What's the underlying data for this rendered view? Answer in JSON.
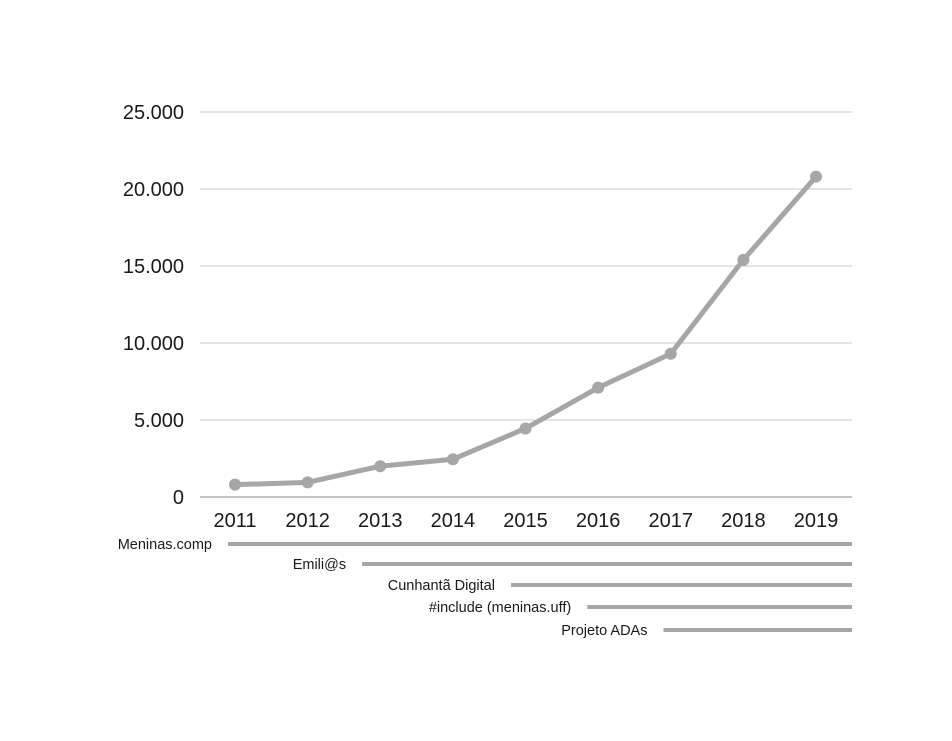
{
  "colors": {
    "series": "#a6a6a6",
    "grid": "#c8c8c8",
    "text": "#1a1a1a",
    "background": "#ffffff"
  },
  "chart_data": {
    "type": "line",
    "title": "",
    "xlabel": "",
    "ylabel": "",
    "categories": [
      "2011",
      "2012",
      "2013",
      "2014",
      "2015",
      "2016",
      "2017",
      "2018",
      "2019"
    ],
    "series": [
      {
        "values": [
          800,
          950,
          2000,
          2450,
          4450,
          7100,
          9300,
          15400,
          20800
        ]
      }
    ],
    "ylim": [
      0,
      25000
    ],
    "yticks": [
      0,
      5000,
      10000,
      15000,
      20000,
      25000
    ],
    "ytick_labels": [
      "0",
      "5.000",
      "10.000",
      "15.000",
      "20.000",
      "25.000"
    ],
    "grid": true,
    "markers": true,
    "legend": "none",
    "timeline": [
      {
        "label": "Meninas.comp",
        "start": "2011"
      },
      {
        "label": "Emili@s",
        "start": "2012.75"
      },
      {
        "label": "Cunhantã Digital",
        "start": "2014.8"
      },
      {
        "label": "#include (meninas.uff)",
        "start": "2015.85"
      },
      {
        "label": "Projeto ADAs",
        "start": "2016.9"
      }
    ]
  }
}
